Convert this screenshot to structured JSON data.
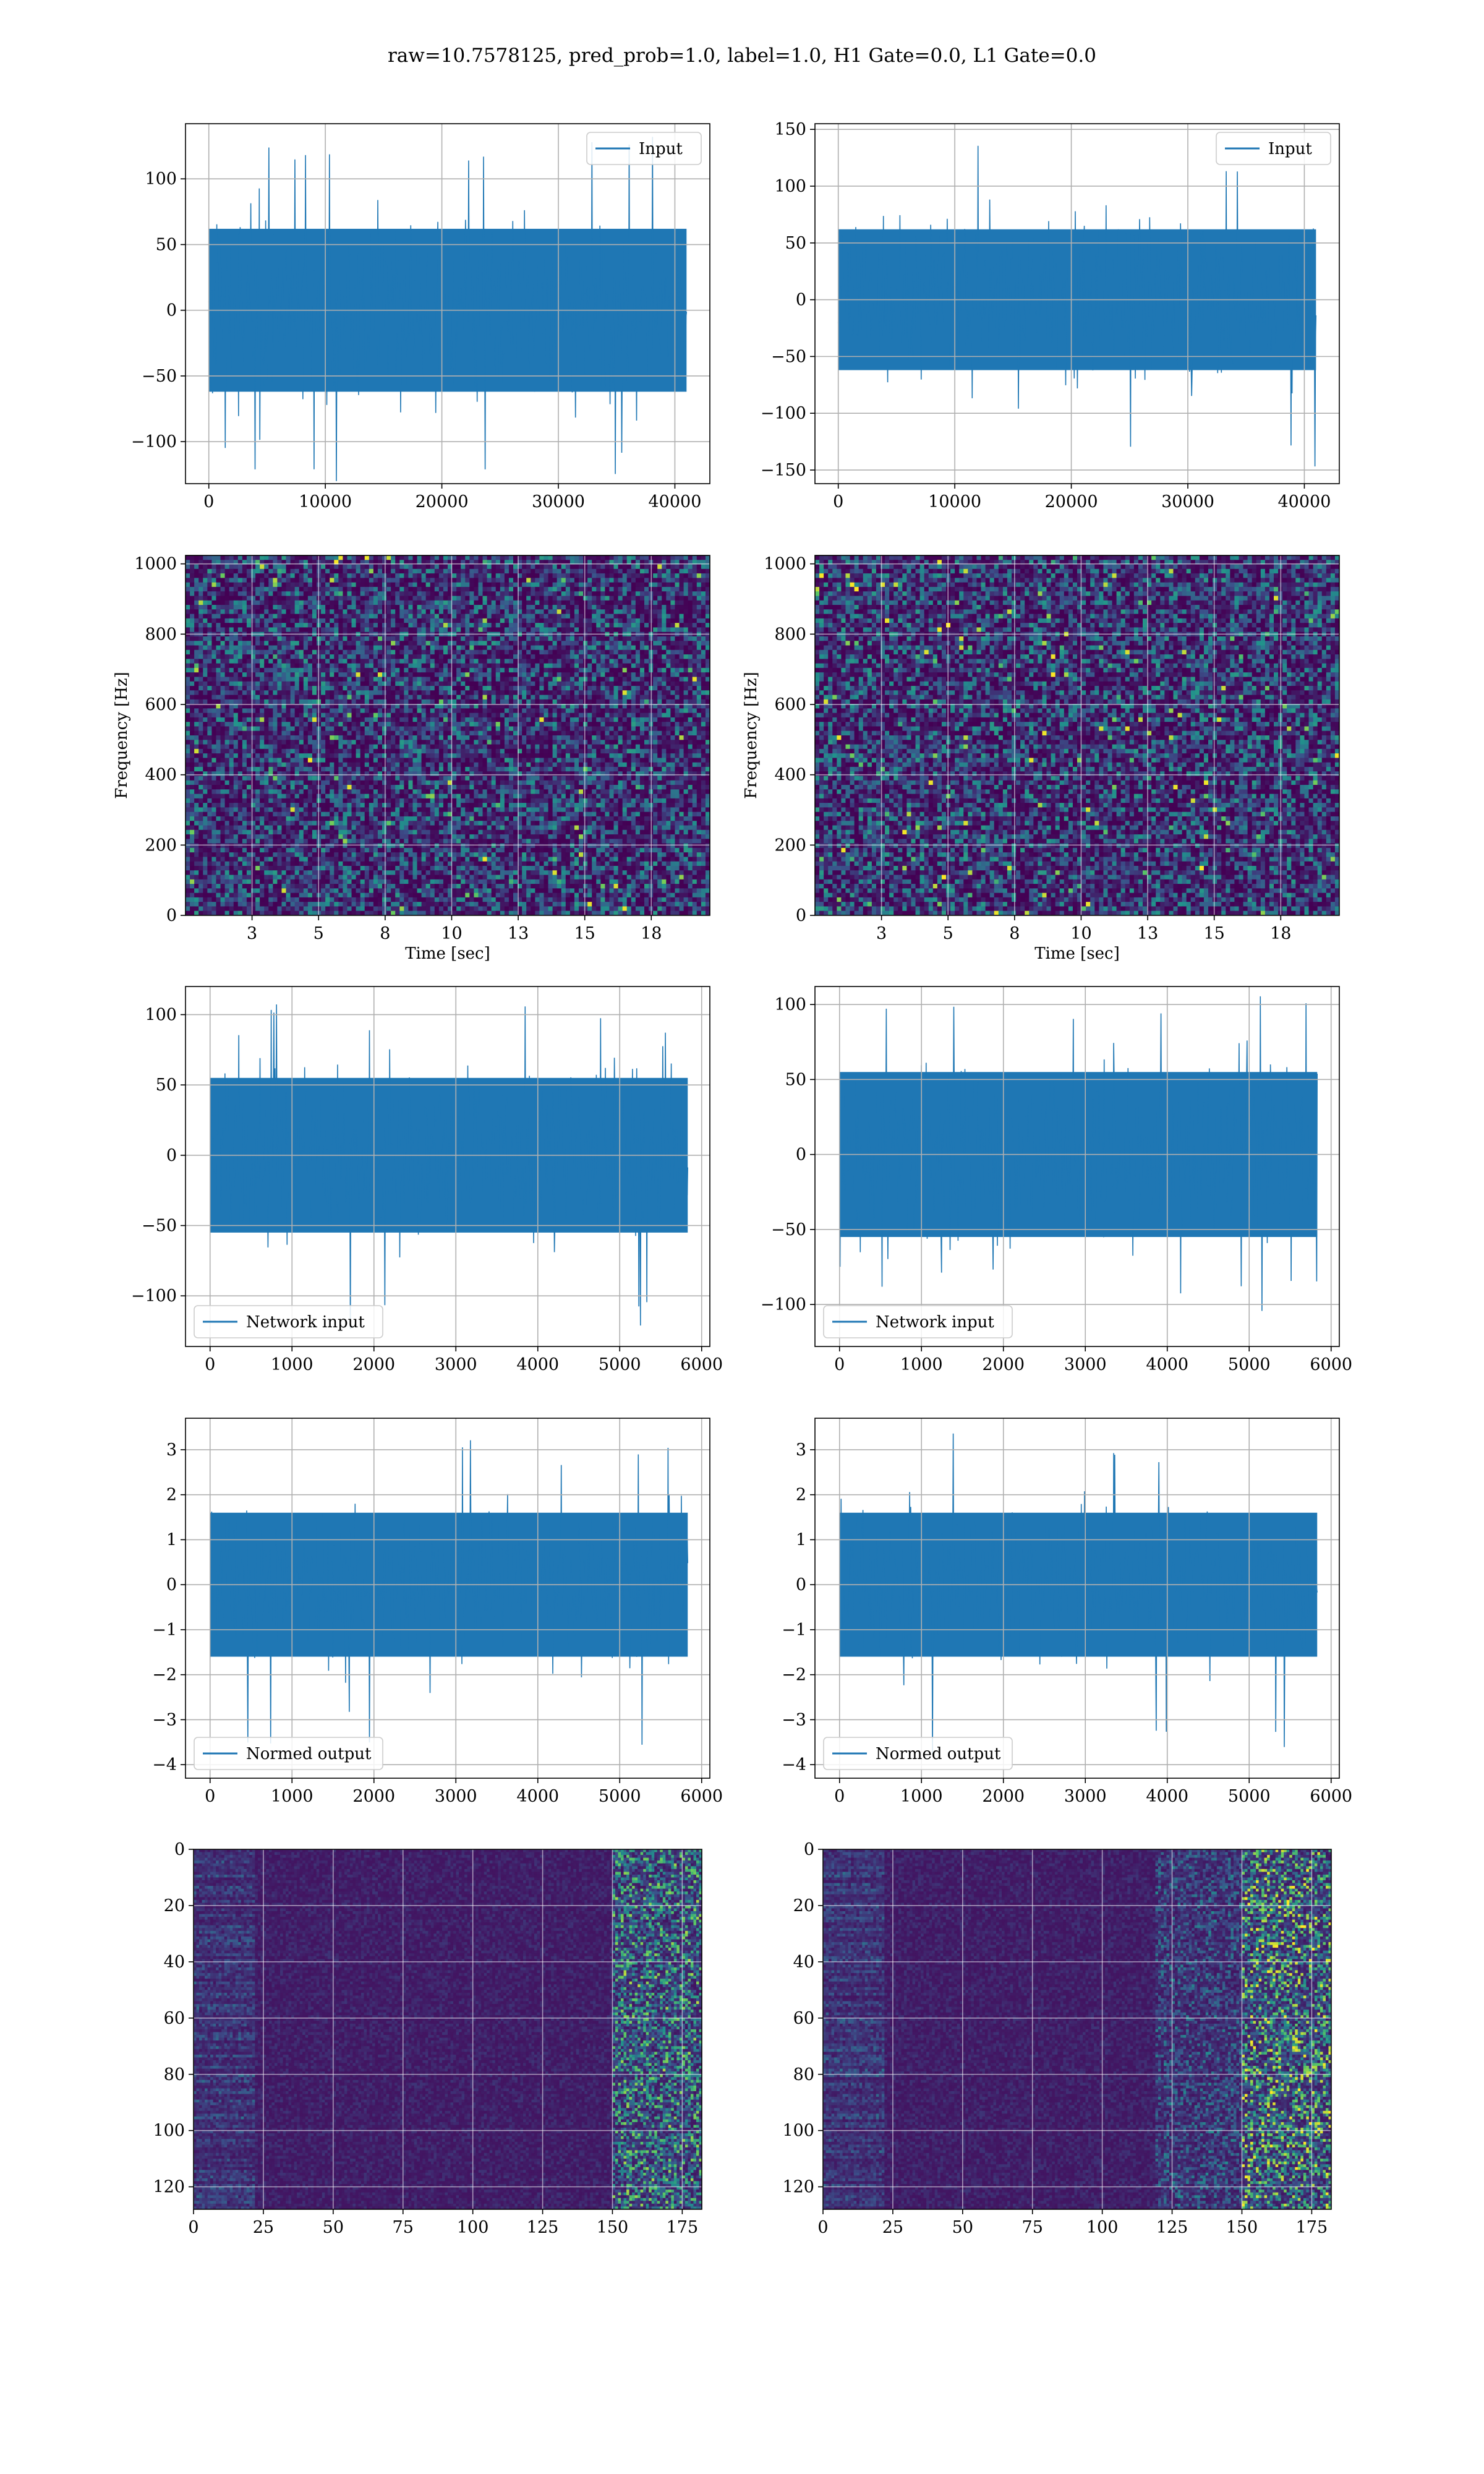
{
  "figure": {
    "title": "raw=10.7578125, pred_prob=1.0, label=1.0, H1 Gate=0.0, L1 Gate=0.0",
    "line_color": "#1f77b4"
  },
  "chart_data": [
    {
      "type": "line",
      "panel": "row1-left",
      "legend": "Input",
      "legend_loc": "upper right",
      "grid": true,
      "x": [
        0,
        41000
      ],
      "xlim": [
        -2000,
        43000
      ],
      "ylim": [
        -132,
        142
      ],
      "xticks": [
        0,
        10000,
        20000,
        30000,
        40000
      ],
      "yticks": [
        -100,
        -50,
        0,
        50,
        100
      ],
      "envelope": {
        "typical": 62,
        "max": 132,
        "min": -130
      }
    },
    {
      "type": "line",
      "panel": "row1-right",
      "legend": "Input",
      "legend_loc": "upper right",
      "grid": true,
      "x": [
        0,
        41000
      ],
      "xlim": [
        -2000,
        43000
      ],
      "ylim": [
        -162,
        155
      ],
      "xticks": [
        0,
        10000,
        20000,
        30000,
        40000
      ],
      "yticks": [
        -150,
        -100,
        -50,
        0,
        50,
        100,
        150
      ],
      "envelope": {
        "typical": 62,
        "max": 140,
        "min": -150
      }
    },
    {
      "type": "heatmap",
      "panel": "row2-left",
      "xlabel": "Time [sec]",
      "ylabel": "Frequency [Hz]",
      "grid": true,
      "xlim": [
        0,
        19.7
      ],
      "ylim": [
        0,
        1024
      ],
      "xticks": [
        2.5,
        5.0,
        7.5,
        10.0,
        12.5,
        15.0,
        17.5
      ],
      "yticks": [
        0,
        200,
        400,
        600,
        800,
        1000
      ],
      "colormap": [
        "#440154",
        "#3b528b",
        "#21918c",
        "#5ec962",
        "#fde725"
      ]
    },
    {
      "type": "heatmap",
      "panel": "row2-right",
      "xlabel": "Time [sec]",
      "ylabel": "Frequency [Hz]",
      "grid": true,
      "xlim": [
        0,
        19.7
      ],
      "ylim": [
        0,
        1024
      ],
      "xticks": [
        2.5,
        5.0,
        7.5,
        10.0,
        12.5,
        15.0,
        17.5
      ],
      "yticks": [
        0,
        200,
        400,
        600,
        800,
        1000
      ],
      "colormap": [
        "#440154",
        "#3b528b",
        "#21918c",
        "#5ec962",
        "#fde725"
      ]
    },
    {
      "type": "line",
      "panel": "row3-left",
      "legend": "Network input",
      "legend_loc": "lower left",
      "grid": true,
      "x": [
        0,
        5830
      ],
      "xlim": [
        -300,
        6100
      ],
      "ylim": [
        -136,
        120
      ],
      "xticks": [
        0,
        1000,
        2000,
        3000,
        4000,
        5000,
        6000
      ],
      "yticks": [
        -100,
        -50,
        0,
        50,
        100
      ],
      "envelope": {
        "typical": 55,
        "max": 108,
        "min": -124
      }
    },
    {
      "type": "line",
      "panel": "row3-right",
      "legend": "Network input",
      "legend_loc": "lower left",
      "grid": true,
      "x": [
        0,
        5830
      ],
      "xlim": [
        -300,
        6100
      ],
      "ylim": [
        -128,
        112
      ],
      "xticks": [
        0,
        1000,
        2000,
        3000,
        4000,
        5000,
        6000
      ],
      "yticks": [
        -100,
        -50,
        0,
        50,
        100
      ],
      "envelope": {
        "typical": 55,
        "max": 108,
        "min": -105
      }
    },
    {
      "type": "line",
      "panel": "row4-left",
      "legend": "Normed output",
      "legend_loc": "lower left",
      "grid": true,
      "x": [
        0,
        5830
      ],
      "xlim": [
        -300,
        6100
      ],
      "ylim": [
        -4.3,
        3.7
      ],
      "xticks": [
        0,
        1000,
        2000,
        3000,
        4000,
        5000,
        6000
      ],
      "yticks": [
        -4,
        -3,
        -2,
        -1,
        0,
        1,
        2,
        3
      ],
      "envelope": {
        "typical": 1.6,
        "max": 3.4,
        "min": -3.9
      }
    },
    {
      "type": "line",
      "panel": "row4-right",
      "legend": "Normed output",
      "legend_loc": "lower left",
      "grid": true,
      "x": [
        0,
        5830
      ],
      "xlim": [
        -300,
        6100
      ],
      "ylim": [
        -4.3,
        3.7
      ],
      "xticks": [
        0,
        1000,
        2000,
        3000,
        4000,
        5000,
        6000
      ],
      "yticks": [
        -4,
        -3,
        -2,
        -1,
        0,
        1,
        2,
        3
      ],
      "envelope": {
        "typical": 1.6,
        "max": 3.4,
        "min": -3.9
      }
    },
    {
      "type": "heatmap",
      "panel": "row5-left",
      "grid": true,
      "xlim": [
        0,
        182
      ],
      "ylim": [
        128,
        0
      ],
      "xticks": [
        0,
        25,
        50,
        75,
        100,
        125,
        150,
        175
      ],
      "yticks": [
        0,
        20,
        40,
        60,
        80,
        100,
        120
      ],
      "colormap": [
        "#440154",
        "#3b528b",
        "#21918c",
        "#5ec962",
        "#fde725"
      ]
    },
    {
      "type": "heatmap",
      "panel": "row5-right",
      "grid": true,
      "xlim": [
        0,
        182
      ],
      "ylim": [
        128,
        0
      ],
      "xticks": [
        0,
        25,
        50,
        75,
        100,
        125,
        150,
        175
      ],
      "yticks": [
        0,
        20,
        40,
        60,
        80,
        100,
        120
      ],
      "colormap": [
        "#440154",
        "#3b528b",
        "#21918c",
        "#5ec962",
        "#fde725"
      ]
    }
  ]
}
